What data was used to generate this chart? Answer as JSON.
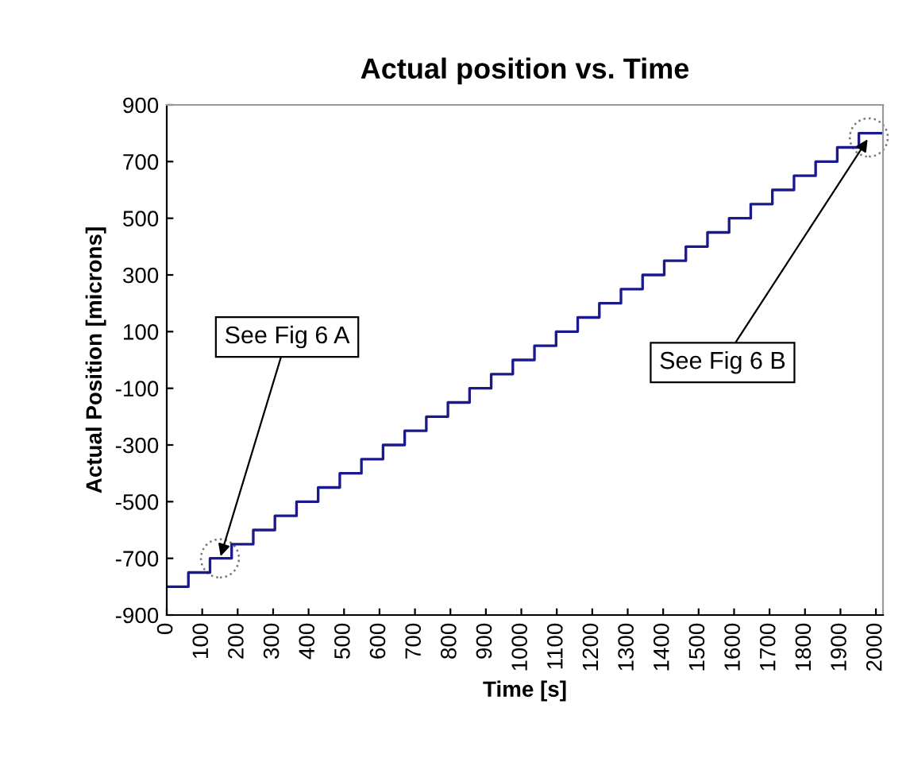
{
  "chart_data": {
    "type": "step",
    "title": "Actual position vs. Time",
    "xlabel": "Time [s]",
    "ylabel": "Actual Position [microns]",
    "x": [
      0,
      61,
      122,
      183,
      244,
      305,
      366,
      427,
      488,
      549,
      610,
      671,
      732,
      793,
      854,
      915,
      976,
      1037,
      1098,
      1159,
      1220,
      1281,
      1342,
      1403,
      1464,
      1525,
      1586,
      1647,
      1708,
      1769,
      1830,
      1891,
      1952,
      2015
    ],
    "series": [
      {
        "color": "#1a1a8c",
        "values": [
          -800,
          -750,
          -700,
          -650,
          -600,
          -550,
          -500,
          -450,
          -400,
          -350,
          -300,
          -250,
          -200,
          -150,
          -100,
          -50,
          0,
          50,
          100,
          150,
          200,
          250,
          300,
          350,
          400,
          450,
          500,
          550,
          600,
          650,
          700,
          750,
          800,
          800
        ]
      }
    ],
    "xlim": [
      0,
      2020
    ],
    "xticks": [
      0,
      100,
      200,
      300,
      400,
      500,
      600,
      700,
      800,
      900,
      1000,
      1100,
      1200,
      1300,
      1400,
      1500,
      1600,
      1700,
      1800,
      1900,
      2000
    ],
    "ylim": [
      -900,
      900
    ],
    "yticks": [
      -900,
      -700,
      -500,
      -300,
      -100,
      100,
      300,
      500,
      700,
      900
    ],
    "annotations": [
      {
        "text": "See Fig 6 A",
        "x": 150,
        "y": -700
      },
      {
        "text": "See Fig 6 B",
        "x": 1980,
        "y": 785
      }
    ],
    "grid": false,
    "legend": false,
    "marker": "none",
    "line_style": "solid"
  }
}
